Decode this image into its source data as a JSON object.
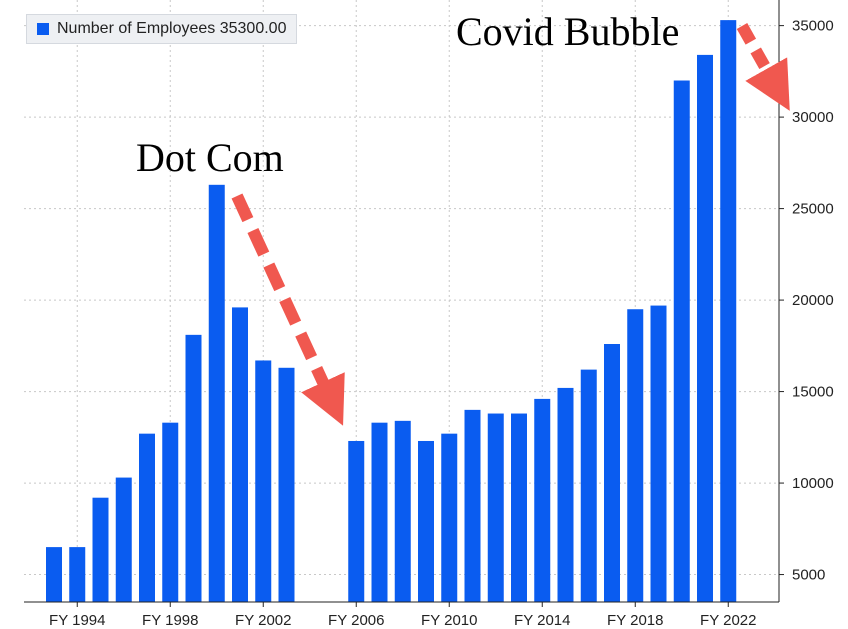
{
  "chart_data": {
    "type": "bar",
    "title": "",
    "xlabel": "",
    "ylabel": "",
    "legend": {
      "label": "Number of Employees 35300.00",
      "placement": "top-left"
    },
    "categories": [
      "FY 1993",
      "FY 1994",
      "FY 1995",
      "FY 1996",
      "FY 1997",
      "FY 1998",
      "FY 1999",
      "FY 2000",
      "FY 2001",
      "FY 2002",
      "FY 2003",
      "FY 2004",
      "FY 2005",
      "FY 2006",
      "FY 2007",
      "FY 2008",
      "FY 2009",
      "FY 2010",
      "FY 2011",
      "FY 2012",
      "FY 2013",
      "FY 2014",
      "FY 2015",
      "FY 2016",
      "FY 2017",
      "FY 2018",
      "FY 2019",
      "FY 2020",
      "FY 2021",
      "FY 2022"
    ],
    "values": [
      6500,
      6500,
      9200,
      10300,
      12700,
      13300,
      18100,
      26300,
      19600,
      16700,
      16300,
      null,
      null,
      12300,
      13300,
      13400,
      12300,
      12700,
      14000,
      13800,
      13800,
      14600,
      15200,
      16200,
      17600,
      19500,
      19700,
      32000,
      33400,
      35300
    ],
    "x_tick_labels": [
      "FY 1994",
      "FY 1998",
      "FY 2002",
      "FY 2006",
      "FY 2010",
      "FY 2014",
      "FY 2018",
      "FY 2022"
    ],
    "y_ticks": [
      5000,
      10000,
      15000,
      20000,
      25000,
      30000,
      35000
    ],
    "ylim": [
      3500,
      36400
    ],
    "y_axis_side": "right",
    "grid": true,
    "bar_color": "#0a5cf0",
    "arrow_color": "#f0584f",
    "annotations": [
      {
        "text": "Dot Com"
      },
      {
        "text": "Covid Bubble"
      }
    ]
  }
}
